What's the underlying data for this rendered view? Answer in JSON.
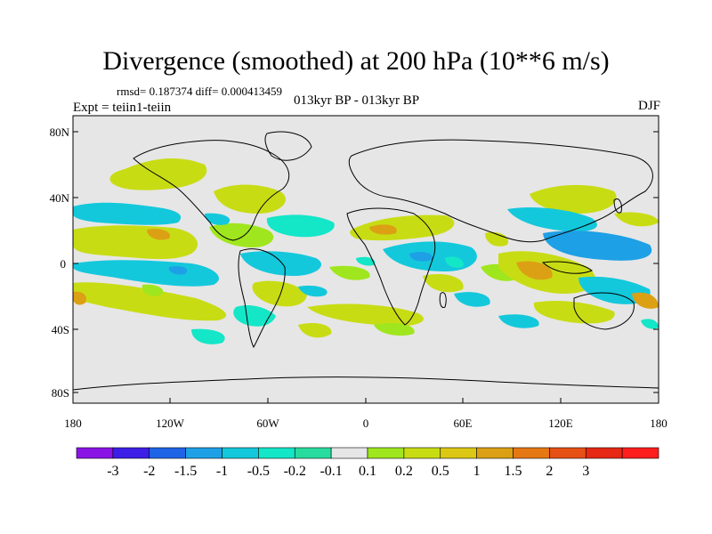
{
  "title": "Divergence (smoothed) at 200 hPa (10**6 m/s)",
  "stats": "rmsd= 0.187374 diff= 0.000413459",
  "experiment": "Expt = teiin1-teiin",
  "period": "013kyr BP - 013kyr BP",
  "season": "DJF",
  "axes": {
    "lat_labels": [
      "80N",
      "40N",
      "0",
      "40S",
      "80S"
    ],
    "lon_labels": [
      "180",
      "120W",
      "60W",
      "0",
      "60E",
      "120E",
      "180"
    ]
  },
  "colorbar": {
    "colors": [
      "#8a14e6",
      "#3c1ee6",
      "#1e64e6",
      "#1ea0e6",
      "#14c8dc",
      "#14e6c8",
      "#28dca0",
      "#e6e6e6",
      "#a0e61e",
      "#c8dc14",
      "#dcc814",
      "#dca014",
      "#e67814",
      "#e65014",
      "#e62814",
      "#ff1e1e"
    ],
    "labels": [
      "-3",
      "-2",
      "-1.5",
      "-1",
      "-0.5",
      "-0.2",
      "-0.1",
      "0.1",
      "0.2",
      "0.5",
      "1",
      "1.5",
      "2",
      "3"
    ]
  },
  "colors": {
    "ocean_background": "#e6e6e6",
    "positive_weak": "#a0e61e",
    "positive_mid": "#c8dc14",
    "positive_strong": "#dca014",
    "negative_weak": "#14e6c8",
    "negative_mid": "#14c8dc",
    "negative_strong": "#1ea0e6"
  }
}
